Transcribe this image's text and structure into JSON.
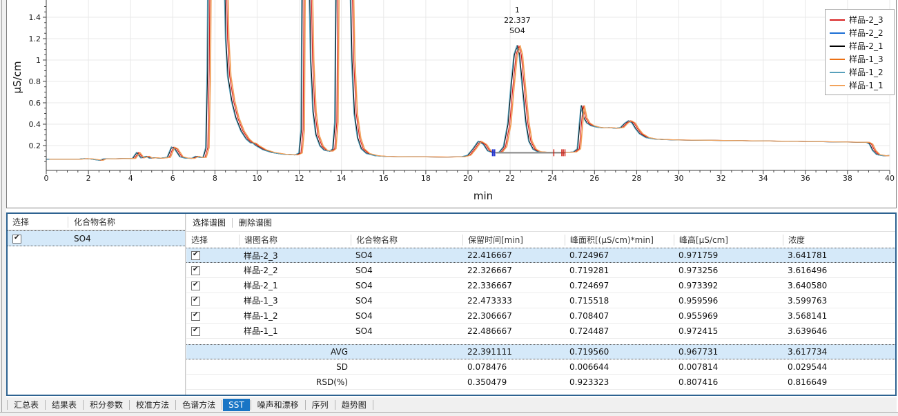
{
  "chart_data": {
    "type": "line",
    "title": "",
    "xlabel": "min",
    "ylabel": "µS/cm",
    "xlim": [
      0,
      40
    ],
    "x_major_tick": 2,
    "x_minor_tick": 0.5,
    "y_tick_labels": [
      0.2,
      0.4,
      0.6,
      0.8,
      1,
      1.2,
      1.4
    ],
    "y_major_tick": 0.2,
    "y_minor_tick": 0.05,
    "grid": true,
    "legend_position": "top-right",
    "annotation": {
      "peak_number": "1",
      "retention_time": "22.337",
      "compound": "SO4",
      "t": 22.337
    },
    "series": [
      {
        "name": "样品-2_3",
        "color": "#d81e1e",
        "rt": 22.416667
      },
      {
        "name": "样品-2_2",
        "color": "#1c6fd4",
        "rt": 22.326667
      },
      {
        "name": "样品-2_1",
        "color": "#000000",
        "rt": 22.336667
      },
      {
        "name": "样品-1_3",
        "color": "#ec7014",
        "rt": 22.473333
      },
      {
        "name": "样品-1_2",
        "color": "#58a0bb",
        "rt": 22.306667
      },
      {
        "name": "样品-1_1",
        "color": "#f2a35c",
        "rt": 22.486667
      }
    ],
    "trace": [
      [
        0,
        0.072
      ],
      [
        1.5,
        0.072
      ],
      [
        1.8,
        0.078
      ],
      [
        2.1,
        0.075
      ],
      [
        2.55,
        0.062
      ],
      [
        2.7,
        0.075
      ],
      [
        3.5,
        0.078
      ],
      [
        4.1,
        0.08
      ],
      [
        4.3,
        0.135
      ],
      [
        4.5,
        0.085
      ],
      [
        4.75,
        0.1
      ],
      [
        4.9,
        0.082
      ],
      [
        5.1,
        0.086
      ],
      [
        5.4,
        0.082
      ],
      [
        5.75,
        0.09
      ],
      [
        5.95,
        0.185
      ],
      [
        6.1,
        0.17
      ],
      [
        6.35,
        0.095
      ],
      [
        6.6,
        0.082
      ],
      [
        6.9,
        0.08
      ],
      [
        7.1,
        0.1
      ],
      [
        7.25,
        0.09
      ],
      [
        7.45,
        0.09
      ],
      [
        7.58,
        0.18
      ],
      [
        7.65,
        0.9
      ],
      [
        7.7,
        2.2
      ],
      [
        8.42,
        2.2
      ],
      [
        8.52,
        1.2
      ],
      [
        8.62,
        0.85
      ],
      [
        8.8,
        0.62
      ],
      [
        9.0,
        0.46
      ],
      [
        9.25,
        0.335
      ],
      [
        9.5,
        0.26
      ],
      [
        9.7,
        0.225
      ],
      [
        9.82,
        0.222
      ],
      [
        9.95,
        0.2
      ],
      [
        10.3,
        0.16
      ],
      [
        10.7,
        0.135
      ],
      [
        11.2,
        0.12
      ],
      [
        11.8,
        0.112
      ],
      [
        12.0,
        0.13
      ],
      [
        12.1,
        0.35
      ],
      [
        12.16,
        2.2
      ],
      [
        12.44,
        2.2
      ],
      [
        12.55,
        1.0
      ],
      [
        12.66,
        0.52
      ],
      [
        12.8,
        0.3
      ],
      [
        13.0,
        0.195
      ],
      [
        13.2,
        0.155
      ],
      [
        13.45,
        0.148
      ],
      [
        13.6,
        0.17
      ],
      [
        13.7,
        0.42
      ],
      [
        13.77,
        2.2
      ],
      [
        14.38,
        2.2
      ],
      [
        14.5,
        1.0
      ],
      [
        14.62,
        0.5
      ],
      [
        14.78,
        0.27
      ],
      [
        14.95,
        0.17
      ],
      [
        15.2,
        0.125
      ],
      [
        15.6,
        0.105
      ],
      [
        16.1,
        0.098
      ],
      [
        17,
        0.095
      ],
      [
        18,
        0.094
      ],
      [
        19,
        0.093
      ],
      [
        19.7,
        0.095
      ],
      [
        20.0,
        0.11
      ],
      [
        20.25,
        0.17
      ],
      [
        20.5,
        0.24
      ],
      [
        20.75,
        0.21
      ],
      [
        20.95,
        0.15
      ],
      [
        21.15,
        0.135
      ],
      [
        21.3,
        0.133
      ],
      [
        21.5,
        0.14
      ],
      [
        21.7,
        0.19
      ],
      [
        21.9,
        0.4
      ],
      [
        22.05,
        0.75
      ],
      [
        22.2,
        1.05
      ],
      [
        22.337,
        1.13
      ],
      [
        22.45,
        1.05
      ],
      [
        22.6,
        0.73
      ],
      [
        22.75,
        0.42
      ],
      [
        22.9,
        0.24
      ],
      [
        23.1,
        0.165
      ],
      [
        23.3,
        0.143
      ],
      [
        23.6,
        0.138
      ],
      [
        24.0,
        0.137
      ],
      [
        24.6,
        0.136
      ],
      [
        25.0,
        0.14
      ],
      [
        25.2,
        0.17
      ],
      [
        25.3,
        0.4
      ],
      [
        25.38,
        0.575
      ],
      [
        25.5,
        0.46
      ],
      [
        25.65,
        0.41
      ],
      [
        25.85,
        0.385
      ],
      [
        26.1,
        0.372
      ],
      [
        26.4,
        0.365
      ],
      [
        26.7,
        0.368
      ],
      [
        27.0,
        0.362
      ],
      [
        27.25,
        0.37
      ],
      [
        27.45,
        0.41
      ],
      [
        27.62,
        0.432
      ],
      [
        27.8,
        0.41
      ],
      [
        27.95,
        0.36
      ],
      [
        28.15,
        0.31
      ],
      [
        28.45,
        0.275
      ],
      [
        28.8,
        0.262
      ],
      [
        29.3,
        0.256
      ],
      [
        30,
        0.252
      ],
      [
        32,
        0.248
      ],
      [
        34,
        0.243
      ],
      [
        36,
        0.238
      ],
      [
        38,
        0.233
      ],
      [
        38.9,
        0.23
      ],
      [
        39.05,
        0.215
      ],
      [
        39.2,
        0.155
      ],
      [
        39.4,
        0.115
      ],
      [
        39.7,
        0.105
      ],
      [
        40,
        0.107
      ]
    ],
    "integration": {
      "baseline": {
        "t1": 21.32,
        "t2": 24.62,
        "v": 0.133,
        "color": "#8f8f8f"
      },
      "start_marks": {
        "t": [
          21.16,
          21.21,
          21.27
        ],
        "color": "#2233cc"
      },
      "end_marks": {
        "t": [
          24.07,
          24.45,
          24.52,
          24.6
        ],
        "color": "#d12419"
      }
    }
  },
  "compound_table": {
    "headers": [
      "选择",
      "化合物名称"
    ],
    "row": {
      "checked": true,
      "compound": "SO4"
    }
  },
  "spectra_toolbar": {
    "items": [
      "选择谱图",
      "删除谱图"
    ]
  },
  "results_table": {
    "columns": [
      "选择",
      "谱图名称",
      "化合物名称",
      "保留时间[min]",
      "峰面积[(µS/cm)*min]",
      "峰高[µS/cm]",
      "浓度"
    ],
    "rows": [
      {
        "checked": true,
        "name": "样品-2_3",
        "compound": "SO4",
        "rt": "22.416667",
        "area": "0.724967",
        "height": "0.971759",
        "conc": "3.641781",
        "highlighted": true
      },
      {
        "checked": true,
        "name": "样品-2_2",
        "compound": "SO4",
        "rt": "22.326667",
        "area": "0.719281",
        "height": "0.973256",
        "conc": "3.616496",
        "highlighted": false
      },
      {
        "checked": true,
        "name": "样品-2_1",
        "compound": "SO4",
        "rt": "22.336667",
        "area": "0.724697",
        "height": "0.973392",
        "conc": "3.640580",
        "highlighted": false
      },
      {
        "checked": true,
        "name": "样品-1_3",
        "compound": "SO4",
        "rt": "22.473333",
        "area": "0.715518",
        "height": "0.959596",
        "conc": "3.599763",
        "highlighted": false
      },
      {
        "checked": true,
        "name": "样品-1_2",
        "compound": "SO4",
        "rt": "22.306667",
        "area": "0.708407",
        "height": "0.955969",
        "conc": "3.568141",
        "highlighted": false
      },
      {
        "checked": true,
        "name": "样品-1_1",
        "compound": "SO4",
        "rt": "22.486667",
        "area": "0.724487",
        "height": "0.972415",
        "conc": "3.639646",
        "highlighted": false
      }
    ],
    "stats": [
      {
        "label": "AVG",
        "values": [
          "22.391111",
          "0.719560",
          "0.967731",
          "3.617734"
        ],
        "highlighted": true
      },
      {
        "label": "SD",
        "values": [
          "0.078476",
          "0.006644",
          "0.007814",
          "0.029544"
        ],
        "highlighted": false
      },
      {
        "label": "RSD(%)",
        "values": [
          "0.350479",
          "0.923323",
          "0.807416",
          "0.816649"
        ],
        "highlighted": false
      }
    ]
  },
  "footer_tabs": {
    "items": [
      {
        "label": "汇总表",
        "selected": false
      },
      {
        "label": "结果表",
        "selected": false
      },
      {
        "label": "积分参数",
        "selected": false
      },
      {
        "label": "校准方法",
        "selected": false
      },
      {
        "label": "色谱方法",
        "selected": false
      },
      {
        "label": "SST",
        "selected": true
      },
      {
        "label": "噪声和漂移",
        "selected": false
      },
      {
        "label": "序列",
        "selected": false
      },
      {
        "label": "趋势图",
        "selected": false
      }
    ]
  },
  "colors": {
    "selected_tab_bg": "#1975c5",
    "row_highlight_bg": "#d5e9f9",
    "panel_focus_border": "#2e6391",
    "gridline": "#e8e8e8",
    "axis": "#3f3f3f"
  }
}
